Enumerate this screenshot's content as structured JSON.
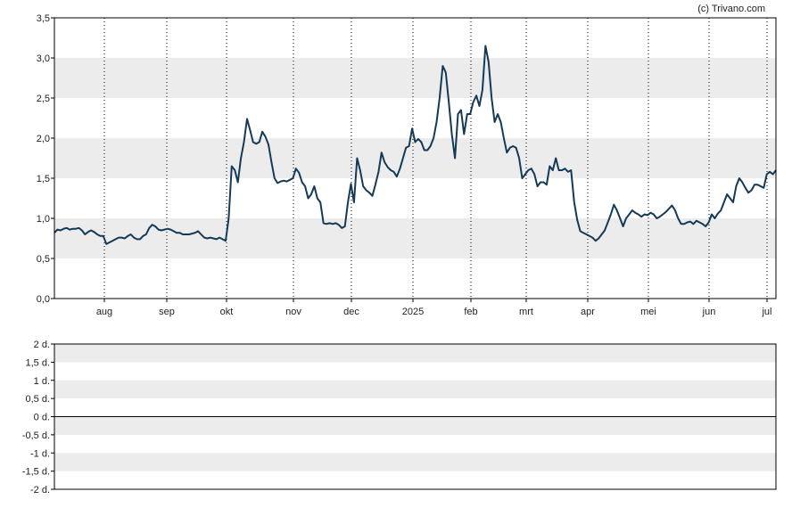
{
  "credit": "(c) Trivano.com",
  "colors": {
    "line": "#143a57",
    "band": "#ececec",
    "grid": "#000000"
  },
  "chart_data": [
    {
      "type": "line",
      "title": "",
      "xlabel": "",
      "ylabel": "",
      "ylim": [
        0,
        3.5
      ],
      "y_ticks": [
        "0,0",
        "0,5",
        "1,0",
        "1,5",
        "2,0",
        "2,5",
        "3,0",
        "3,5"
      ],
      "x_ticks": [
        "aug",
        "sep",
        "okt",
        "nov",
        "dec",
        "2025",
        "feb",
        "mrt",
        "apr",
        "mei",
        "jun",
        "jul"
      ],
      "grid": "vertical dotted lines at month ticks, alternating horizontal bands",
      "series": [
        {
          "values": [
            0.82,
            0.86,
            0.85,
            0.87,
            0.88,
            0.86,
            0.87,
            0.87,
            0.88,
            0.85,
            0.8,
            0.83,
            0.85,
            0.83,
            0.8,
            0.78,
            0.78,
            0.68,
            0.7,
            0.72,
            0.74,
            0.76,
            0.76,
            0.75,
            0.78,
            0.8,
            0.76,
            0.74,
            0.74,
            0.78,
            0.8,
            0.88,
            0.92,
            0.9,
            0.86,
            0.85,
            0.86,
            0.87,
            0.86,
            0.84,
            0.82,
            0.82,
            0.8,
            0.8,
            0.8,
            0.81,
            0.82,
            0.84,
            0.8,
            0.76,
            0.75,
            0.76,
            0.75,
            0.74,
            0.76,
            0.74,
            0.72,
            1.0,
            1.65,
            1.6,
            1.45,
            1.75,
            1.95,
            2.24,
            2.1,
            1.95,
            1.93,
            1.95,
            2.08,
            2.02,
            1.92,
            1.7,
            1.5,
            1.44,
            1.46,
            1.47,
            1.46,
            1.48,
            1.5,
            1.62,
            1.57,
            1.45,
            1.4,
            1.25,
            1.3,
            1.4,
            1.25,
            1.2,
            0.94,
            0.93,
            0.94,
            0.93,
            0.94,
            0.92,
            0.88,
            0.9,
            1.2,
            1.43,
            1.2,
            1.75,
            1.6,
            1.4,
            1.35,
            1.32,
            1.28,
            1.42,
            1.58,
            1.82,
            1.7,
            1.64,
            1.6,
            1.58,
            1.52,
            1.62,
            1.75,
            1.88,
            1.9,
            2.12,
            1.95,
            1.99,
            1.95,
            1.85,
            1.85,
            1.9,
            2.0,
            2.2,
            2.5,
            2.9,
            2.82,
            2.45,
            2.05,
            1.75,
            2.3,
            2.35,
            2.05,
            2.3,
            2.3,
            2.45,
            2.53,
            2.4,
            2.6,
            3.15,
            2.95,
            2.5,
            2.2,
            2.3,
            2.2,
            2.0,
            1.82,
            1.88,
            1.9,
            1.88,
            1.75,
            1.5,
            1.55,
            1.6,
            1.62,
            1.55,
            1.4,
            1.45,
            1.45,
            1.42,
            1.65,
            1.6,
            1.75,
            1.6,
            1.6,
            1.62,
            1.58,
            1.6,
            1.2,
            0.98,
            0.84,
            0.82,
            0.8,
            0.78,
            0.76,
            0.72,
            0.75,
            0.8,
            0.85,
            0.95,
            1.05,
            1.17,
            1.1,
            1.0,
            0.9,
            1.0,
            1.05,
            1.1,
            1.07,
            1.05,
            1.02,
            1.05,
            1.04,
            1.07,
            1.05,
            1.0,
            1.02,
            1.05,
            1.08,
            1.12,
            1.16,
            1.1,
            1.0,
            0.93,
            0.93,
            0.95,
            0.96,
            0.93,
            0.97,
            0.95,
            0.93,
            0.9,
            0.95,
            1.05,
            1.0,
            1.06,
            1.1,
            1.2,
            1.3,
            1.25,
            1.2,
            1.4,
            1.5,
            1.45,
            1.38,
            1.32,
            1.35,
            1.42,
            1.42,
            1.4,
            1.38,
            1.55,
            1.58,
            1.55,
            1.6
          ]
        }
      ]
    },
    {
      "type": "line",
      "title": "",
      "xlabel": "",
      "ylabel": "",
      "ylim": [
        -2,
        2
      ],
      "y_ticks": [
        "2 d.",
        "1,5 d.",
        "1 d.",
        "0,5 d.",
        "0 d.",
        "-0,5 d.",
        "-1 d.",
        "-1,5 d.",
        "-2 d."
      ],
      "grid": "alternating horizontal bands, solid line at 0",
      "series": []
    }
  ]
}
